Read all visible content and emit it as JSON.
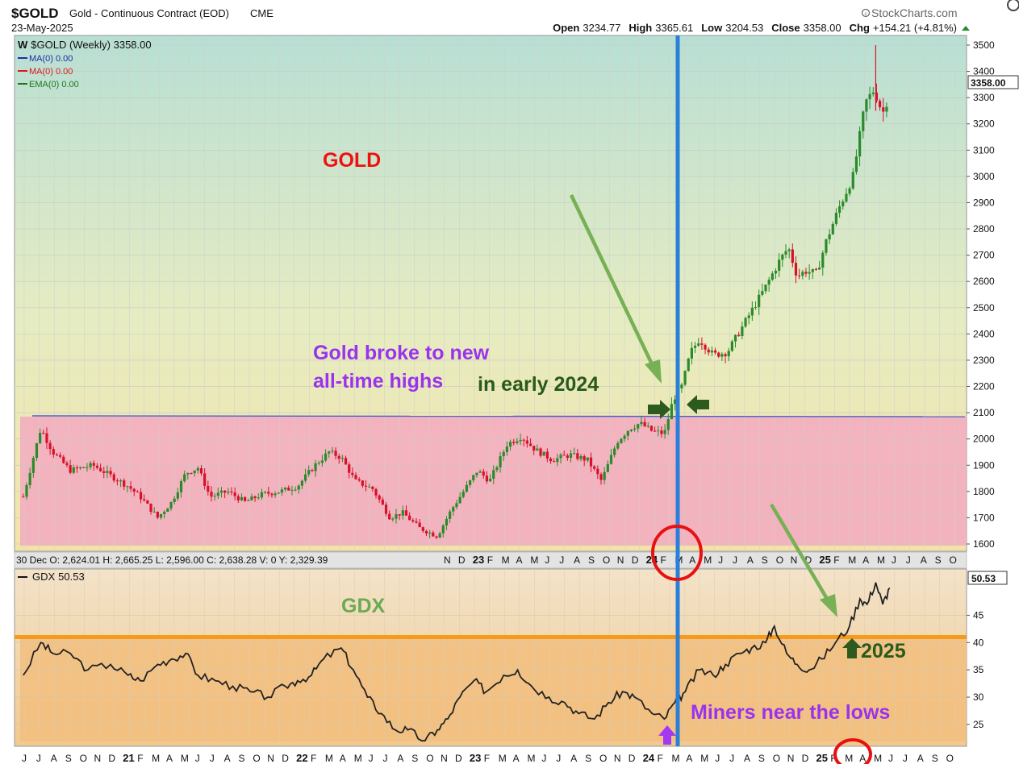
{
  "header": {
    "symbol": "$GOLD",
    "name": "Gold - Continuous Contract (EOD)",
    "exchange": "CME",
    "date": "23-May-2025",
    "brand": "StockCharts.com",
    "brand_icon": "copyright-icon",
    "open_label": "Open",
    "open_value": "3234.77",
    "high_label": "High",
    "high_value": "3365.61",
    "low_label": "Low",
    "low_value": "3204.53",
    "close_label": "Close",
    "close_value": "3358.00",
    "chg_label": "Chg",
    "chg_value": "+154.21 (+4.81%)",
    "chg_icon": "triangle-up-icon"
  },
  "legend": {
    "main": "$GOLD (Weekly) 3358.00",
    "ma1": "MA(0) 0.00",
    "ma2": "MA(0) 0.00",
    "ema": "EMA(0) 0.00"
  },
  "hover_info": "30 Dec O: 2,624.01   H: 2,665.25   L: 2,596.00   C: 2,638.28   V: 0   Y: 2,329.39",
  "annotations": {
    "gold_title": "GOLD",
    "gdx_title": "GDX",
    "broke_line1": "Gold broke to new",
    "broke_line2": "all-time highs",
    "early_2024": "in early 2024",
    "label_2025": "2025",
    "miners": "Miners near the lows"
  },
  "colors": {
    "gold_title": "#ee1111",
    "gdx_title": "#6aaa55",
    "purple_text": "#9933ee",
    "green_text": "#2a5a1a",
    "green_arrow": "#77b055",
    "dark_arrow": "#2d5a1f",
    "blue_line": "#2a7fd8",
    "orange_line": "#f59a1a",
    "red_circle": "#e81010",
    "up_candle": "#2b8a2b",
    "down_candle": "#d8102a",
    "pink_zone": "#f3adc0",
    "orange_zone": "#f2be7e"
  },
  "chart_data": [
    {
      "type": "candlestick",
      "series_name": "$GOLD (Weekly)",
      "last_value": "3358.00",
      "y_ticks": [
        1600,
        1700,
        1800,
        1900,
        2000,
        2100,
        2200,
        2300,
        2400,
        2500,
        2600,
        2700,
        2800,
        2900,
        3000,
        3100,
        3200,
        3300,
        3400,
        3500
      ],
      "ylim": [
        1570,
        3520
      ],
      "resistance": 2085,
      "zone": [
        1600,
        2085
      ],
      "x_ticks": [
        "N",
        "D",
        "23",
        "F",
        "M",
        "A",
        "M",
        "J",
        "J",
        "A",
        "S",
        "O",
        "N",
        "D",
        "24",
        "F",
        "M",
        "A",
        "M",
        "J",
        "J",
        "A",
        "S",
        "O",
        "N",
        "D",
        "25",
        "F",
        "M",
        "A",
        "M",
        "J",
        "J",
        "A",
        "S",
        "O"
      ],
      "weekly_close_path": [
        [
          2020.45,
          1780
        ],
        [
          2020.55,
          2040
        ],
        [
          2020.62,
          1950
        ],
        [
          2020.72,
          1880
        ],
        [
          2020.85,
          1900
        ],
        [
          2020.95,
          1860
        ],
        [
          2021.05,
          1820
        ],
        [
          2021.12,
          1780
        ],
        [
          2021.22,
          1700
        ],
        [
          2021.3,
          1760
        ],
        [
          2021.38,
          1870
        ],
        [
          2021.45,
          1890
        ],
        [
          2021.52,
          1780
        ],
        [
          2021.62,
          1800
        ],
        [
          2021.72,
          1760
        ],
        [
          2021.82,
          1790
        ],
        [
          2021.92,
          1800
        ],
        [
          2022.02,
          1820
        ],
        [
          2022.12,
          1900
        ],
        [
          2022.2,
          1950
        ],
        [
          2022.27,
          1930
        ],
        [
          2022.35,
          1840
        ],
        [
          2022.45,
          1810
        ],
        [
          2022.55,
          1700
        ],
        [
          2022.62,
          1720
        ],
        [
          2022.72,
          1660
        ],
        [
          2022.82,
          1630
        ],
        [
          2022.9,
          1730
        ],
        [
          2022.97,
          1800
        ],
        [
          2023.05,
          1880
        ],
        [
          2023.12,
          1840
        ],
        [
          2023.22,
          1980
        ],
        [
          2023.3,
          2010
        ],
        [
          2023.38,
          1960
        ],
        [
          2023.48,
          1920
        ],
        [
          2023.58,
          1940
        ],
        [
          2023.68,
          1920
        ],
        [
          2023.76,
          1840
        ],
        [
          2023.85,
          1990
        ],
        [
          2023.92,
          2040
        ],
        [
          2023.98,
          2060
        ],
        [
          2024.05,
          2030
        ],
        [
          2024.12,
          2020
        ],
        [
          2024.17,
          2150
        ],
        [
          2024.22,
          2200
        ],
        [
          2024.27,
          2330
        ],
        [
          2024.32,
          2380
        ],
        [
          2024.4,
          2320
        ],
        [
          2024.48,
          2330
        ],
        [
          2024.56,
          2420
        ],
        [
          2024.63,
          2500
        ],
        [
          2024.7,
          2580
        ],
        [
          2024.78,
          2680
        ],
        [
          2024.83,
          2730
        ],
        [
          2024.88,
          2620
        ],
        [
          2024.93,
          2640
        ],
        [
          2024.99,
          2630
        ],
        [
          2025.05,
          2760
        ],
        [
          2025.12,
          2880
        ],
        [
          2025.2,
          3000
        ],
        [
          2025.27,
          3280
        ],
        [
          2025.32,
          3330
        ],
        [
          2025.37,
          3240
        ],
        [
          2025.41,
          3320
        ]
      ]
    },
    {
      "type": "line",
      "series_name": "GDX",
      "last_value": "50.53",
      "y_ticks": [
        25,
        30,
        35,
        40,
        45
      ],
      "ylim": [
        21,
        52
      ],
      "resistance": 41,
      "x_ticks": [
        "J",
        "J",
        "A",
        "S",
        "O",
        "N",
        "D",
        "21",
        "F",
        "M",
        "A",
        "M",
        "J",
        "J",
        "A",
        "S",
        "O",
        "N",
        "D",
        "22",
        "F",
        "M",
        "A",
        "M",
        "J",
        "J",
        "A",
        "S",
        "O",
        "N",
        "D",
        "23",
        "F",
        "M",
        "A",
        "M",
        "J",
        "J",
        "A",
        "S",
        "O",
        "N",
        "D",
        "24",
        "F",
        "M",
        "A",
        "M",
        "J",
        "J",
        "A",
        "S",
        "O",
        "N",
        "D",
        "25",
        "F",
        "M",
        "A",
        "M",
        "J",
        "J",
        "A",
        "S",
        "O"
      ],
      "values_path": [
        [
          2020.45,
          34
        ],
        [
          2020.55,
          40
        ],
        [
          2020.62,
          38
        ],
        [
          2020.72,
          38
        ],
        [
          2020.82,
          35
        ],
        [
          2020.95,
          36
        ],
        [
          2021.05,
          34
        ],
        [
          2021.12,
          33
        ],
        [
          2021.22,
          36
        ],
        [
          2021.3,
          37
        ],
        [
          2021.38,
          38
        ],
        [
          2021.45,
          34
        ],
        [
          2021.55,
          33
        ],
        [
          2021.65,
          32
        ],
        [
          2021.75,
          31
        ],
        [
          2021.85,
          30
        ],
        [
          2021.95,
          32
        ],
        [
          2022.02,
          33
        ],
        [
          2022.1,
          34
        ],
        [
          2022.17,
          37
        ],
        [
          2022.27,
          39
        ],
        [
          2022.34,
          35
        ],
        [
          2022.42,
          30
        ],
        [
          2022.5,
          27
        ],
        [
          2022.58,
          24
        ],
        [
          2022.65,
          24
        ],
        [
          2022.75,
          22
        ],
        [
          2022.82,
          24
        ],
        [
          2022.88,
          26
        ],
        [
          2022.95,
          30
        ],
        [
          2023.03,
          33
        ],
        [
          2023.1,
          31
        ],
        [
          2023.2,
          34
        ],
        [
          2023.28,
          35
        ],
        [
          2023.36,
          32
        ],
        [
          2023.46,
          30
        ],
        [
          2023.55,
          29
        ],
        [
          2023.63,
          27
        ],
        [
          2023.72,
          26
        ],
        [
          2023.8,
          29
        ],
        [
          2023.88,
          31
        ],
        [
          2023.95,
          30
        ],
        [
          2024.05,
          27
        ],
        [
          2024.12,
          26
        ],
        [
          2024.18,
          29
        ],
        [
          2024.24,
          31
        ],
        [
          2024.32,
          35
        ],
        [
          2024.4,
          34
        ],
        [
          2024.47,
          36
        ],
        [
          2024.55,
          38
        ],
        [
          2024.62,
          39
        ],
        [
          2024.7,
          40
        ],
        [
          2024.75,
          43
        ],
        [
          2024.82,
          38
        ],
        [
          2024.88,
          36
        ],
        [
          2024.95,
          35
        ],
        [
          2025.02,
          37
        ],
        [
          2025.1,
          40
        ],
        [
          2025.18,
          43
        ],
        [
          2025.24,
          48
        ],
        [
          2025.28,
          47
        ],
        [
          2025.33,
          51
        ],
        [
          2025.37,
          47
        ],
        [
          2025.41,
          50
        ]
      ]
    }
  ]
}
